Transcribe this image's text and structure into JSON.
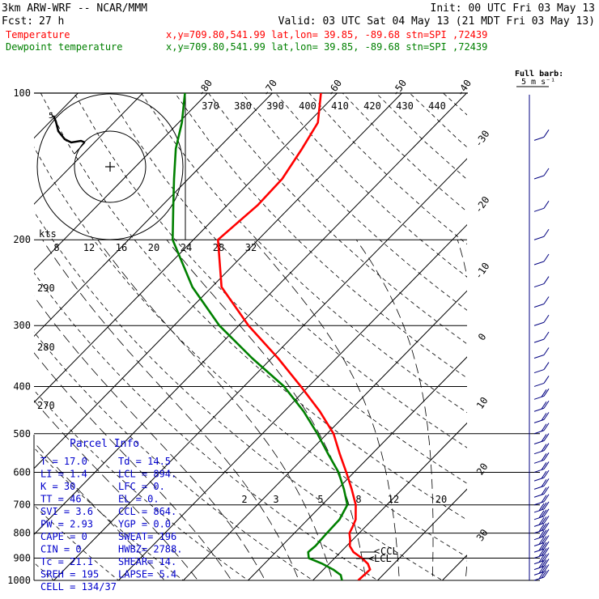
{
  "header": {
    "model": "3km ARW-WRF -- NCAR/MMM",
    "init": "Init: 00 UTC Fri 03 May 13",
    "fcst_label": "Fcst:",
    "fcst_value": "27 h",
    "valid": "Valid: 03 UTC Sat 04 May 13 (21 MDT Fri 03 May 13)"
  },
  "legend": {
    "temperature": {
      "label": "Temperature",
      "info": "x,y=709.80,541.99   lat,lon= 39.85, -89.68   stn=SPI ,72439",
      "color": "#ff0000"
    },
    "dewpoint": {
      "label": "Dewpoint temperature",
      "info": "x,y=709.80,541.99   lat,lon= 39.85, -89.68   stn=SPI ,72439",
      "color": "#008000"
    }
  },
  "barb_legend": {
    "title": "Full barb:",
    "value": "5 m s⁻¹"
  },
  "hodograph": {
    "kts_label": "kts",
    "speed_ticks": [
      "8",
      "12",
      "16",
      "20",
      "24",
      "28",
      "32"
    ],
    "direction_ticks": [
      "370",
      "380",
      "390",
      "400",
      "410",
      "420",
      "430",
      "440"
    ],
    "side_ticks": [
      "290",
      "280",
      "270"
    ]
  },
  "parcel_info": {
    "title": "Parcel Info",
    "rows": [
      {
        "a": "T   =    17.0",
        "b": "Td  =  14.5"
      },
      {
        "a": "LI  =     1.4",
        "b": "LCL =  894."
      },
      {
        "a": "K   =      30",
        "b": "LFC =     0."
      },
      {
        "a": "TT  =      46",
        "b": "EL  =     0."
      },
      {
        "a": "SVI =     3.6",
        "b": "CCL =  864."
      },
      {
        "a": "PW  =    2.93",
        "b": "YGP =   0.0"
      },
      {
        "a": "CAPE =      0",
        "b": "SWEAT=   196"
      },
      {
        "a": "CIN  =      0",
        "b": "HWBZ= 2788."
      },
      {
        "a": "Tc  =    21.1",
        "b": "SHEAR=   14."
      },
      {
        "a": "SREH =    195",
        "b": "LAPSE=   5.4"
      },
      {
        "a": "CELL = 134/37",
        "b": ""
      }
    ]
  },
  "markers": {
    "ccl": "CCL",
    "lcl": "LCL"
  },
  "chart_data": {
    "type": "line",
    "title": "",
    "ylabel": "",
    "y_scale": "log-pressure",
    "ylim": [
      1000,
      100
    ],
    "pressure_ticks": [
      100,
      200,
      300,
      400,
      500,
      600,
      700,
      800,
      900,
      1000
    ],
    "isotherm_labels": [
      -80,
      -70,
      -60,
      -50,
      -40,
      -30,
      -20,
      -10,
      0,
      10,
      20,
      30,
      40
    ],
    "mixing_ratio_labels": [
      "2",
      "3",
      "5",
      "8",
      "12",
      "20"
    ],
    "series": [
      {
        "name": "Temperature",
        "color": "#ff0000",
        "points": [
          [
            1000,
            17.0
          ],
          [
            950,
            17.2
          ],
          [
            925,
            16.0
          ],
          [
            900,
            14.2
          ],
          [
            875,
            12.0
          ],
          [
            850,
            10.5
          ],
          [
            825,
            9.6
          ],
          [
            800,
            8.5
          ],
          [
            775,
            8.0
          ],
          [
            750,
            7.4
          ],
          [
            700,
            5.2
          ],
          [
            650,
            2.2
          ],
          [
            600,
            -1.2
          ],
          [
            550,
            -5.0
          ],
          [
            500,
            -9.0
          ],
          [
            450,
            -14.5
          ],
          [
            400,
            -21.2
          ],
          [
            350,
            -29.0
          ],
          [
            300,
            -38.5
          ],
          [
            250,
            -48.5
          ],
          [
            200,
            -56.2
          ],
          [
            170,
            -55.3
          ],
          [
            150,
            -55.5
          ],
          [
            130,
            -57.0
          ],
          [
            115,
            -58.5
          ],
          [
            100,
            -62.5
          ]
        ]
      },
      {
        "name": "Dewpoint temperature",
        "color": "#008000",
        "points": [
          [
            1000,
            14.5
          ],
          [
            975,
            13.5
          ],
          [
            950,
            11.5
          ],
          [
            925,
            9.0
          ],
          [
            900,
            6.0
          ],
          [
            875,
            5.0
          ],
          [
            850,
            5.2
          ],
          [
            800,
            5.0
          ],
          [
            750,
            4.9
          ],
          [
            700,
            3.9
          ],
          [
            650,
            1.0
          ],
          [
            600,
            -2.4
          ],
          [
            550,
            -6.8
          ],
          [
            500,
            -11.5
          ],
          [
            450,
            -17.0
          ],
          [
            400,
            -23.8
          ],
          [
            350,
            -33.0
          ],
          [
            300,
            -43.0
          ],
          [
            250,
            -53.0
          ],
          [
            200,
            -63.2
          ],
          [
            170,
            -68.3
          ],
          [
            150,
            -72.2
          ],
          [
            130,
            -76.5
          ],
          [
            115,
            -79.5
          ],
          [
            100,
            -83.5
          ]
        ]
      }
    ]
  }
}
